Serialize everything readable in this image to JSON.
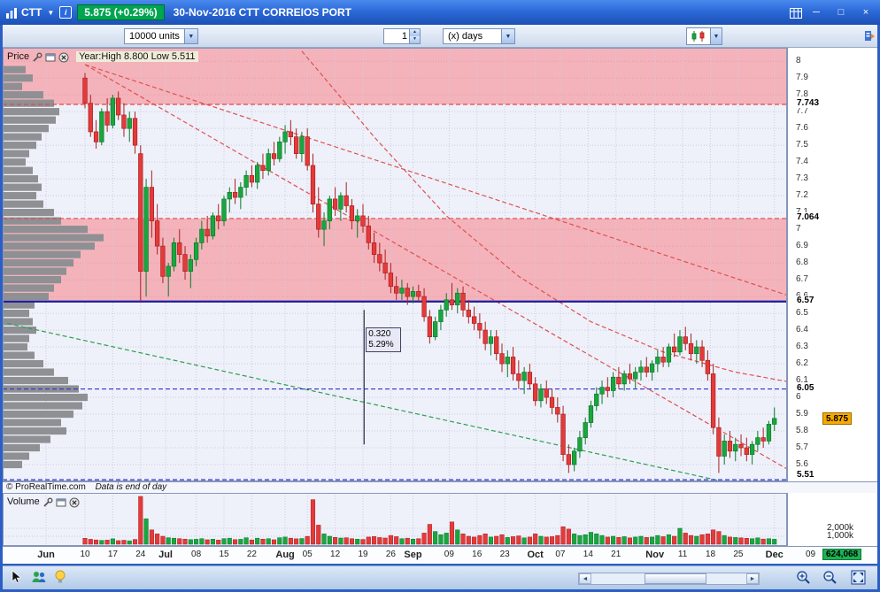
{
  "title_bar": {
    "symbol": "CTT",
    "info_icon": "i",
    "change_badge": "5.875 (+0.29%)",
    "title": "30-Nov-2016 CTT CORREIOS PORT"
  },
  "icons": {
    "dropdown_arrow": "▼",
    "spinner_up": "▲",
    "spinner_down": "▼",
    "minimize": "─",
    "maximize": "□",
    "close": "×",
    "scroll_left": "◄",
    "scroll_right": "►"
  },
  "toolbar": {
    "units": "10000 units",
    "interval_value": "1",
    "interval_unit": "(x) days"
  },
  "price_pane": {
    "label": "Price",
    "year_stats": "Year:High 8.800 Low 5.511",
    "copyright": "© ProRealTime.com",
    "data_note": "Data is end of day",
    "cursor_box": {
      "value": "0.320",
      "percent": "5.29%"
    },
    "last_price_label": "5.875"
  },
  "volume_pane": {
    "label": "Volume",
    "last_volume_label": "624,068"
  },
  "chart_data": {
    "type": "candlestick_with_volume",
    "title": "CTT CORREIOS PORT daily",
    "as_of": "30-Nov-2016",
    "last_price": 5.875,
    "last_volume": 624068,
    "ylim": [
      5.5,
      8.08
    ],
    "y_ticks": [
      "8",
      "7.9",
      "7.8",
      "7.7",
      "7.6",
      "7.5",
      "7.4",
      "7.3",
      "7.2",
      "7.1",
      "7",
      "6.9",
      "6.8",
      "6.7",
      "6.6",
      "6.5",
      "6.4",
      "6.3",
      "6.2",
      "6.1",
      "6",
      "5.9",
      "5.8",
      "5.7",
      "5.6",
      "5.5"
    ],
    "x_ticks": [
      {
        "label": "Jun",
        "day": -7
      },
      {
        "label": "10",
        "day": 0
      },
      {
        "label": "17",
        "day": 5
      },
      {
        "label": "24",
        "day": 10
      },
      {
        "label": "Jul",
        "day": 14.5
      },
      {
        "label": "08",
        "day": 20
      },
      {
        "label": "15",
        "day": 25
      },
      {
        "label": "22",
        "day": 30
      },
      {
        "label": "Aug",
        "day": 36
      },
      {
        "label": "05",
        "day": 40
      },
      {
        "label": "12",
        "day": 45
      },
      {
        "label": "19",
        "day": 50
      },
      {
        "label": "26",
        "day": 55
      },
      {
        "label": "Sep",
        "day": 59
      },
      {
        "label": "09",
        "day": 65.5
      },
      {
        "label": "16",
        "day": 70.5
      },
      {
        "label": "23",
        "day": 75.5
      },
      {
        "label": "Oct",
        "day": 81
      },
      {
        "label": "07",
        "day": 85.5
      },
      {
        "label": "14",
        "day": 90.5
      },
      {
        "label": "21",
        "day": 95.5
      },
      {
        "label": "Nov",
        "day": 102.5
      },
      {
        "label": "11",
        "day": 107.5
      },
      {
        "label": "18",
        "day": 112.5
      },
      {
        "label": "25",
        "day": 117.5
      },
      {
        "label": "Dec",
        "day": 124
      },
      {
        "label": "09",
        "day": 130.5
      }
    ],
    "colors": {
      "up": "#1aa63e",
      "up_border": "#0c7a2b",
      "down": "#e53a3a",
      "down_border": "#aa2020",
      "band": "#f4b3bb",
      "background": "#eef1fa",
      "profile": "#8e9094",
      "grid": "#c8cddf",
      "grid_in_band": "#e49aa2",
      "last_price_badge": "#f7a900",
      "last_volume_badge": "#1db254"
    },
    "resistance_bands": [
      [
        8.08,
        7.743
      ],
      [
        7.064,
        6.57
      ]
    ],
    "levels": [
      {
        "value": 7.743,
        "label": "7.743",
        "style": "dashed",
        "color": "#e04848",
        "width": 1.2
      },
      {
        "value": 7.064,
        "label": "7.064",
        "style": "dashed",
        "color": "#e04848",
        "width": 1.2
      },
      {
        "value": 6.57,
        "label": "6.57",
        "style": "solid",
        "color": "#1c1c9e",
        "width": 2.2
      },
      {
        "value": 6.05,
        "label": "6.05",
        "style": "dashed",
        "color": "#3333cc",
        "width": 1.2
      },
      {
        "value": 5.51,
        "label": "5.51",
        "style": "dashed",
        "color": "#3333cc",
        "width": 1.2
      }
    ],
    "trend_lines": [
      {
        "name": "downtrend-steep",
        "color": "#e05050",
        "style": "dashed",
        "points": [
          [
            0,
            7.98
          ],
          [
            127,
            5.56
          ]
        ]
      },
      {
        "name": "downtrend-shallow",
        "color": "#e05050",
        "style": "dashed",
        "points": [
          [
            0,
            7.98
          ],
          [
            127,
            6.6
          ]
        ]
      },
      {
        "name": "moving-average",
        "color": "#e05050",
        "style": "dashed",
        "points": [
          [
            39,
            8.06
          ],
          [
            52,
            7.55
          ],
          [
            65,
            7.08
          ],
          [
            78,
            6.72
          ],
          [
            91,
            6.45
          ],
          [
            104,
            6.27
          ],
          [
            117,
            6.15
          ],
          [
            127,
            6.09
          ]
        ]
      },
      {
        "name": "support-trend",
        "color": "#2e9e50",
        "style": "dashed",
        "points": [
          [
            -14,
            6.44
          ],
          [
            127,
            5.41
          ]
        ]
      }
    ],
    "cursor": {
      "day": 50.2,
      "from": 6.52,
      "to": 5.72
    },
    "volume_axis": {
      "max": 6000,
      "ticks": [
        {
          "label": "2,000k",
          "value": 2000
        },
        {
          "label": "1,000k",
          "value": 1000
        }
      ]
    },
    "volume_profile": [
      [
        7.95,
        26
      ],
      [
        7.9,
        34
      ],
      [
        7.85,
        22
      ],
      [
        7.8,
        46
      ],
      [
        7.75,
        58
      ],
      [
        7.7,
        64
      ],
      [
        7.65,
        60
      ],
      [
        7.6,
        52
      ],
      [
        7.55,
        44
      ],
      [
        7.5,
        38
      ],
      [
        7.45,
        30
      ],
      [
        7.4,
        26
      ],
      [
        7.35,
        34
      ],
      [
        7.3,
        40
      ],
      [
        7.25,
        44
      ],
      [
        7.2,
        38
      ],
      [
        7.15,
        46
      ],
      [
        7.1,
        58
      ],
      [
        7.05,
        66
      ],
      [
        7.0,
        96
      ],
      [
        6.95,
        114
      ],
      [
        6.9,
        104
      ],
      [
        6.85,
        88
      ],
      [
        6.8,
        80
      ],
      [
        6.75,
        72
      ],
      [
        6.7,
        66
      ],
      [
        6.65,
        58
      ],
      [
        6.6,
        52
      ],
      [
        6.55,
        36
      ],
      [
        6.5,
        30
      ],
      [
        6.45,
        34
      ],
      [
        6.4,
        38
      ],
      [
        6.35,
        30
      ],
      [
        6.3,
        28
      ],
      [
        6.25,
        36
      ],
      [
        6.2,
        46
      ],
      [
        6.15,
        58
      ],
      [
        6.1,
        74
      ],
      [
        6.05,
        86
      ],
      [
        6.0,
        96
      ],
      [
        5.95,
        90
      ],
      [
        5.9,
        80
      ],
      [
        5.85,
        66
      ],
      [
        5.8,
        72
      ],
      [
        5.75,
        54
      ],
      [
        5.7,
        42
      ],
      [
        5.65,
        30
      ],
      [
        5.6,
        22
      ]
    ],
    "ohlc": [
      [
        7.9,
        7.93,
        7.72,
        7.75
      ],
      [
        7.75,
        7.8,
        7.55,
        7.58
      ],
      [
        7.58,
        7.65,
        7.48,
        7.52
      ],
      [
        7.52,
        7.72,
        7.5,
        7.7
      ],
      [
        7.7,
        7.78,
        7.58,
        7.62
      ],
      [
        7.62,
        7.8,
        7.6,
        7.78
      ],
      [
        7.78,
        7.82,
        7.65,
        7.68
      ],
      [
        7.68,
        7.75,
        7.55,
        7.6
      ],
      [
        7.6,
        7.7,
        7.52,
        7.66
      ],
      [
        7.66,
        7.7,
        7.45,
        7.5
      ],
      [
        7.45,
        7.5,
        6.57,
        6.75
      ],
      [
        6.75,
        7.3,
        6.6,
        7.25
      ],
      [
        7.25,
        7.35,
        6.95,
        7.05
      ],
      [
        7.05,
        7.15,
        6.85,
        6.9
      ],
      [
        6.9,
        6.95,
        6.68,
        6.72
      ],
      [
        6.72,
        6.8,
        6.6,
        6.78
      ],
      [
        6.78,
        6.95,
        6.75,
        6.92
      ],
      [
        6.92,
        7.0,
        6.8,
        6.85
      ],
      [
        6.85,
        6.9,
        6.7,
        6.75
      ],
      [
        6.75,
        6.85,
        6.65,
        6.82
      ],
      [
        6.82,
        6.95,
        6.78,
        6.92
      ],
      [
        6.92,
        7.05,
        6.88,
        7.0
      ],
      [
        7.0,
        7.08,
        6.92,
        6.96
      ],
      [
        6.96,
        7.1,
        6.94,
        7.08
      ],
      [
        7.08,
        7.15,
        7.0,
        7.05
      ],
      [
        7.05,
        7.2,
        7.02,
        7.18
      ],
      [
        7.18,
        7.25,
        7.1,
        7.22
      ],
      [
        7.22,
        7.3,
        7.15,
        7.19
      ],
      [
        7.19,
        7.28,
        7.12,
        7.25
      ],
      [
        7.25,
        7.35,
        7.2,
        7.32
      ],
      [
        7.32,
        7.38,
        7.25,
        7.28
      ],
      [
        7.28,
        7.4,
        7.24,
        7.38
      ],
      [
        7.38,
        7.45,
        7.3,
        7.35
      ],
      [
        7.35,
        7.48,
        7.32,
        7.45
      ],
      [
        7.45,
        7.52,
        7.38,
        7.42
      ],
      [
        7.42,
        7.55,
        7.4,
        7.52
      ],
      [
        7.52,
        7.62,
        7.45,
        7.58
      ],
      [
        7.58,
        7.65,
        7.5,
        7.55
      ],
      [
        7.55,
        7.6,
        7.42,
        7.45
      ],
      [
        7.45,
        7.58,
        7.4,
        7.55
      ],
      [
        7.55,
        7.6,
        7.35,
        7.38
      ],
      [
        7.38,
        7.45,
        7.1,
        7.15
      ],
      [
        7.15,
        7.25,
        6.95,
        7.0
      ],
      [
        7.0,
        7.1,
        6.9,
        7.05
      ],
      [
        7.05,
        7.2,
        7.0,
        7.18
      ],
      [
        7.18,
        7.25,
        7.08,
        7.12
      ],
      [
        7.12,
        7.22,
        7.05,
        7.2
      ],
      [
        7.2,
        7.28,
        7.1,
        7.14
      ],
      [
        7.14,
        7.18,
        7.0,
        7.05
      ],
      [
        7.05,
        7.12,
        6.95,
        7.08
      ],
      [
        7.08,
        7.15,
        6.98,
        7.02
      ],
      [
        7.02,
        7.08,
        6.88,
        6.92
      ],
      [
        6.92,
        6.98,
        6.8,
        6.85
      ],
      [
        6.85,
        6.92,
        6.75,
        6.8
      ],
      [
        6.8,
        6.88,
        6.7,
        6.74
      ],
      [
        6.74,
        6.8,
        6.62,
        6.66
      ],
      [
        6.66,
        6.72,
        6.58,
        6.62
      ],
      [
        6.62,
        6.7,
        6.58,
        6.65
      ],
      [
        6.65,
        6.68,
        6.55,
        6.6
      ],
      [
        6.6,
        6.66,
        6.56,
        6.63
      ],
      [
        6.63,
        6.67,
        6.57,
        6.6
      ],
      [
        6.6,
        6.65,
        6.45,
        6.48
      ],
      [
        6.48,
        6.52,
        6.32,
        6.36
      ],
      [
        6.36,
        6.48,
        6.34,
        6.45
      ],
      [
        6.45,
        6.55,
        6.4,
        6.52
      ],
      [
        6.52,
        6.62,
        6.48,
        6.58
      ],
      [
        6.58,
        6.68,
        6.52,
        6.55
      ],
      [
        6.55,
        6.65,
        6.5,
        6.62
      ],
      [
        6.62,
        6.66,
        6.48,
        6.52
      ],
      [
        6.52,
        6.58,
        6.44,
        6.48
      ],
      [
        6.48,
        6.54,
        6.4,
        6.44
      ],
      [
        6.44,
        6.5,
        6.35,
        6.4
      ],
      [
        6.4,
        6.45,
        6.28,
        6.32
      ],
      [
        6.32,
        6.4,
        6.25,
        6.36
      ],
      [
        6.36,
        6.4,
        6.22,
        6.26
      ],
      [
        6.26,
        6.32,
        6.15,
        6.2
      ],
      [
        6.2,
        6.28,
        6.12,
        6.24
      ],
      [
        6.24,
        6.3,
        6.1,
        6.14
      ],
      [
        6.14,
        6.22,
        6.05,
        6.1
      ],
      [
        6.1,
        6.18,
        6.02,
        6.15
      ],
      [
        6.15,
        6.2,
        6.05,
        6.08
      ],
      [
        6.08,
        6.12,
        5.95,
        5.98
      ],
      [
        5.98,
        6.08,
        5.94,
        6.05
      ],
      [
        6.05,
        6.1,
        5.96,
        6.0
      ],
      [
        6.0,
        6.05,
        5.9,
        5.94
      ],
      [
        5.94,
        6.0,
        5.85,
        5.9
      ],
      [
        5.9,
        5.95,
        5.62,
        5.66
      ],
      [
        5.66,
        5.72,
        5.55,
        5.6
      ],
      [
        5.6,
        5.7,
        5.56,
        5.68
      ],
      [
        5.68,
        5.8,
        5.64,
        5.76
      ],
      [
        5.76,
        5.88,
        5.72,
        5.85
      ],
      [
        5.85,
        5.98,
        5.82,
        5.95
      ],
      [
        5.95,
        6.06,
        5.92,
        6.02
      ],
      [
        6.02,
        6.1,
        5.96,
        6.06
      ],
      [
        6.06,
        6.12,
        6.0,
        6.04
      ],
      [
        6.04,
        6.15,
        6.0,
        6.12
      ],
      [
        6.12,
        6.18,
        6.05,
        6.08
      ],
      [
        6.08,
        6.16,
        6.04,
        6.14
      ],
      [
        6.14,
        6.2,
        6.08,
        6.11
      ],
      [
        6.11,
        6.18,
        6.05,
        6.15
      ],
      [
        6.15,
        6.22,
        6.1,
        6.18
      ],
      [
        6.18,
        6.24,
        6.12,
        6.15
      ],
      [
        6.15,
        6.22,
        6.1,
        6.2
      ],
      [
        6.2,
        6.28,
        6.15,
        6.24
      ],
      [
        6.24,
        6.3,
        6.18,
        6.21
      ],
      [
        6.21,
        6.32,
        6.18,
        6.3
      ],
      [
        6.3,
        6.38,
        6.24,
        6.27
      ],
      [
        6.27,
        6.4,
        6.25,
        6.36
      ],
      [
        6.36,
        6.42,
        6.28,
        6.32
      ],
      [
        6.32,
        6.38,
        6.22,
        6.26
      ],
      [
        6.26,
        6.34,
        6.2,
        6.3
      ],
      [
        6.3,
        6.34,
        6.18,
        6.22
      ],
      [
        6.22,
        6.28,
        6.1,
        6.14
      ],
      [
        6.14,
        6.2,
        5.78,
        5.82
      ],
      [
        5.82,
        5.88,
        5.55,
        5.65
      ],
      [
        5.65,
        5.78,
        5.6,
        5.74
      ],
      [
        5.74,
        5.8,
        5.64,
        5.68
      ],
      [
        5.68,
        5.76,
        5.62,
        5.72
      ],
      [
        5.72,
        5.78,
        5.65,
        5.7
      ],
      [
        5.7,
        5.76,
        5.62,
        5.66
      ],
      [
        5.66,
        5.74,
        5.6,
        5.72
      ],
      [
        5.72,
        5.8,
        5.68,
        5.76
      ],
      [
        5.76,
        5.82,
        5.7,
        5.74
      ],
      [
        5.74,
        5.86,
        5.72,
        5.84
      ],
      [
        5.84,
        5.94,
        5.8,
        5.875
      ]
    ],
    "volumes": [
      750,
      620,
      540,
      480,
      520,
      680,
      450,
      500,
      430,
      600,
      6000,
      3200,
      1800,
      1300,
      1000,
      820,
      760,
      700,
      640,
      580,
      620,
      700,
      560,
      640,
      520,
      700,
      760,
      580,
      620,
      820,
      540,
      760,
      640,
      700,
      560,
      820,
      900,
      760,
      680,
      720,
      980,
      5600,
      2400,
      1300,
      1000,
      860,
      780,
      820,
      700,
      640,
      600,
      900,
      960,
      840,
      780,
      1100,
      950,
      700,
      760,
      640,
      700,
      1400,
      2500,
      1600,
      1200,
      1400,
      2800,
      1800,
      1300,
      1000,
      900,
      1100,
      1300,
      900,
      1000,
      1200,
      850,
      950,
      1050,
      800,
      900,
      1300,
      1000,
      900,
      950,
      1100,
      2200,
      1900,
      1300,
      1100,
      1200,
      1500,
      1300,
      1100,
      900,
      1000,
      850,
      950,
      800,
      900,
      1000,
      850,
      900,
      1100,
      950,
      1200,
      1000,
      2000,
      1400,
      1100,
      1000,
      1200,
      1300,
      1800,
      1600,
      1100,
      900,
      850,
      800,
      750,
      700,
      800,
      650,
      700,
      624
    ]
  }
}
